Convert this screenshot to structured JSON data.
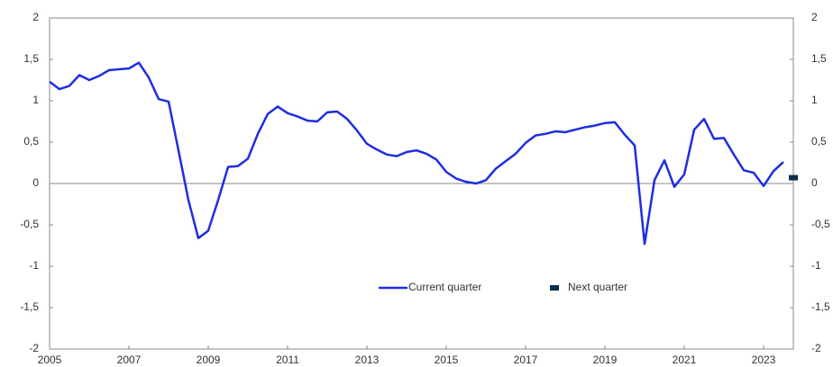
{
  "chart_data": {
    "type": "line",
    "series": [
      {
        "name": "Current quarter",
        "color": "#1f2de0",
        "x": [
          2005,
          2005.25,
          2005.5,
          2005.75,
          2006,
          2006.25,
          2006.5,
          2006.75,
          2007,
          2007.25,
          2007.5,
          2007.75,
          2008,
          2008.25,
          2008.5,
          2008.75,
          2009,
          2009.25,
          2009.5,
          2009.75,
          2010,
          2010.25,
          2010.5,
          2010.75,
          2011,
          2011.25,
          2011.5,
          2011.75,
          2012,
          2012.25,
          2012.5,
          2012.75,
          2013,
          2013.25,
          2013.5,
          2013.75,
          2014,
          2014.25,
          2014.5,
          2014.75,
          2015,
          2015.25,
          2015.5,
          2015.75,
          2016,
          2016.25,
          2016.5,
          2016.75,
          2017,
          2017.25,
          2017.5,
          2017.75,
          2018,
          2018.25,
          2018.5,
          2018.75,
          2019,
          2019.25,
          2019.5,
          2019.75,
          2020,
          2020.25,
          2020.5,
          2020.75,
          2021,
          2021.25,
          2021.5,
          2021.75,
          2022,
          2022.25,
          2022.5,
          2022.75,
          2023,
          2023.25,
          2023.5
        ],
        "values": [
          1.23,
          1.14,
          1.18,
          1.31,
          1.25,
          1.3,
          1.37,
          1.38,
          1.39,
          1.46,
          1.28,
          1.02,
          0.99,
          0.4,
          -0.2,
          -0.66,
          -0.57,
          -0.2,
          0.2,
          0.21,
          0.3,
          0.6,
          0.84,
          0.93,
          0.85,
          0.81,
          0.76,
          0.75,
          0.86,
          0.87,
          0.78,
          0.64,
          0.48,
          0.41,
          0.35,
          0.33,
          0.38,
          0.4,
          0.36,
          0.29,
          0.14,
          0.06,
          0.02,
          0,
          0.04,
          0.18,
          0.27,
          0.36,
          0.49,
          0.58,
          0.6,
          0.63,
          0.62,
          0.65,
          0.68,
          0.7,
          0.73,
          0.74,
          0.59,
          0.46,
          -0.73,
          0.04,
          0.28,
          -0.04,
          0.11,
          0.65,
          0.78,
          0.54,
          0.55,
          0.35,
          0.16,
          0.13,
          -0.03,
          0.15,
          0.26
        ]
      },
      {
        "name": "Next quarter",
        "color": "#0b2e4a",
        "x": [
          2023.75
        ],
        "values": [
          0.07
        ]
      }
    ],
    "xlim": [
      2005,
      2023.75
    ],
    "xticks": [
      2005,
      2007,
      2009,
      2011,
      2013,
      2015,
      2017,
      2019,
      2021,
      2023
    ],
    "ylim": [
      -2,
      2
    ],
    "yticks": [
      -2,
      {
        "value": -1.5,
        "label": "-1,5"
      },
      -1,
      {
        "value": -0.5,
        "label": "-0,5"
      },
      0,
      {
        "value": 0.5,
        "label": "0,5"
      },
      1,
      {
        "value": 1.5,
        "label": "1,5"
      },
      2
    ],
    "y2lim": [
      -2,
      2
    ],
    "y2ticks": [
      -2,
      {
        "value": -1.5,
        "label": "-1,5"
      },
      -1,
      {
        "value": -0.5,
        "label": "-0,5"
      },
      0,
      {
        "value": 0.5,
        "label": "0,5"
      },
      1,
      {
        "value": 1.5,
        "label": "1,5"
      },
      2
    ],
    "legend": "bottom-center"
  }
}
